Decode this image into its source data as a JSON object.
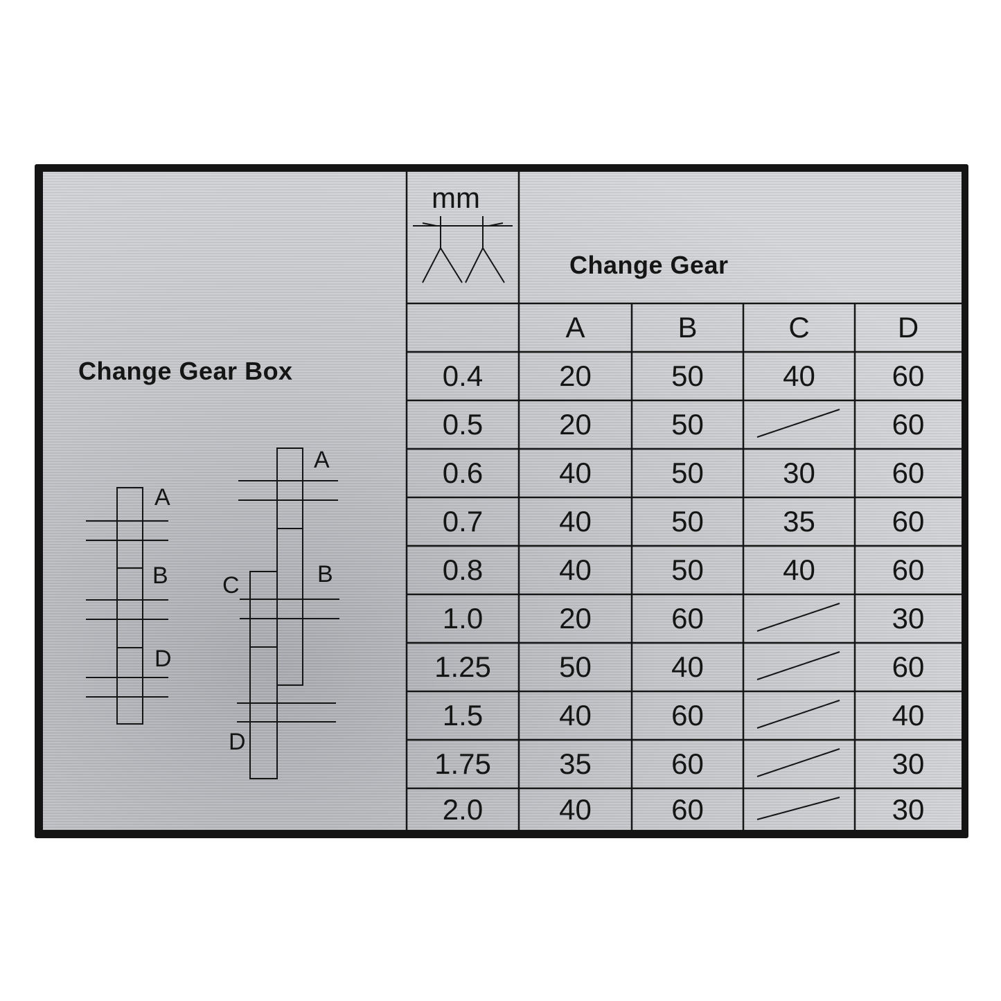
{
  "plate": {
    "left_title": "Change Gear Box",
    "right_title": "Change Gear",
    "unit_label": "mm",
    "pitch-icon": "thread-pitch-icon",
    "colors": {
      "engraving": "#151515",
      "plate": "#cfd0d3",
      "border": "#141414"
    }
  },
  "diagram": {
    "left_labels": [
      "A",
      "B",
      "D"
    ],
    "right_labels": [
      "A",
      "B",
      "C",
      "D"
    ]
  },
  "table": {
    "columns": [
      "A",
      "B",
      "C",
      "D"
    ],
    "rows": [
      {
        "pitch": "0.4",
        "A": "20",
        "B": "50",
        "C": "40",
        "D": "60"
      },
      {
        "pitch": "0.5",
        "A": "20",
        "B": "50",
        "C": null,
        "D": "60"
      },
      {
        "pitch": "0.6",
        "A": "40",
        "B": "50",
        "C": "30",
        "D": "60"
      },
      {
        "pitch": "0.7",
        "A": "40",
        "B": "50",
        "C": "35",
        "D": "60"
      },
      {
        "pitch": "0.8",
        "A": "40",
        "B": "50",
        "C": "40",
        "D": "60"
      },
      {
        "pitch": "1.0",
        "A": "20",
        "B": "60",
        "C": null,
        "D": "30"
      },
      {
        "pitch": "1.25",
        "A": "50",
        "B": "40",
        "C": null,
        "D": "60"
      },
      {
        "pitch": "1.5",
        "A": "40",
        "B": "60",
        "C": null,
        "D": "40"
      },
      {
        "pitch": "1.75",
        "A": "35",
        "B": "60",
        "C": null,
        "D": "30"
      },
      {
        "pitch": "2.0",
        "A": "40",
        "B": "60",
        "C": null,
        "D": "30"
      }
    ]
  }
}
